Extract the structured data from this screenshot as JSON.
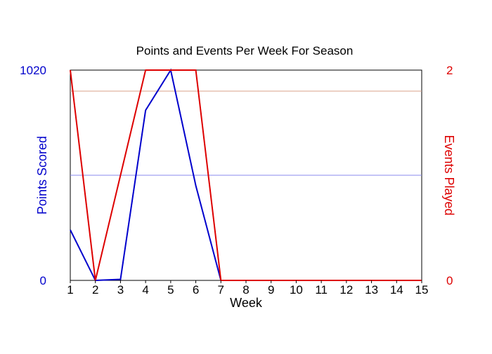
{
  "chart_data": {
    "type": "line",
    "title": "Points and Events Per Week For Season",
    "xlabel": "Week",
    "ylabel_left": "Points Scored",
    "ylabel_right": "Events Played",
    "x": [
      1,
      2,
      3,
      4,
      5,
      6,
      7,
      8,
      9,
      10,
      11,
      12,
      13,
      14,
      15
    ],
    "x_ticks": [
      "1",
      "2",
      "3",
      "4",
      "5",
      "6",
      "7",
      "8",
      "9",
      "10",
      "11",
      "12",
      "13",
      "14",
      "15"
    ],
    "ylim_left": [
      0,
      1020
    ],
    "ylim_right": [
      0,
      2
    ],
    "y_ticks_left": [
      "0",
      "1020"
    ],
    "y_ticks_right": [
      "0",
      "2"
    ],
    "series": [
      {
        "name": "Points Scored",
        "axis": "left",
        "color": "#0000cc",
        "values": [
          245,
          0,
          5,
          825,
          1020,
          460,
          0,
          0,
          0,
          0,
          0,
          0,
          0,
          0,
          0
        ]
      },
      {
        "name": "Events Played",
        "axis": "right",
        "color": "#dd0000",
        "values": [
          2,
          0,
          1,
          2,
          2,
          2,
          0,
          0,
          0,
          0,
          0,
          0,
          0,
          0,
          0
        ]
      }
    ],
    "reference_lines": [
      {
        "axis": "left",
        "value": 510,
        "color": "#8888ee"
      },
      {
        "axis": "right",
        "value": 1.8,
        "color": "#d9a08a"
      }
    ],
    "grid": false,
    "legend": "none"
  }
}
